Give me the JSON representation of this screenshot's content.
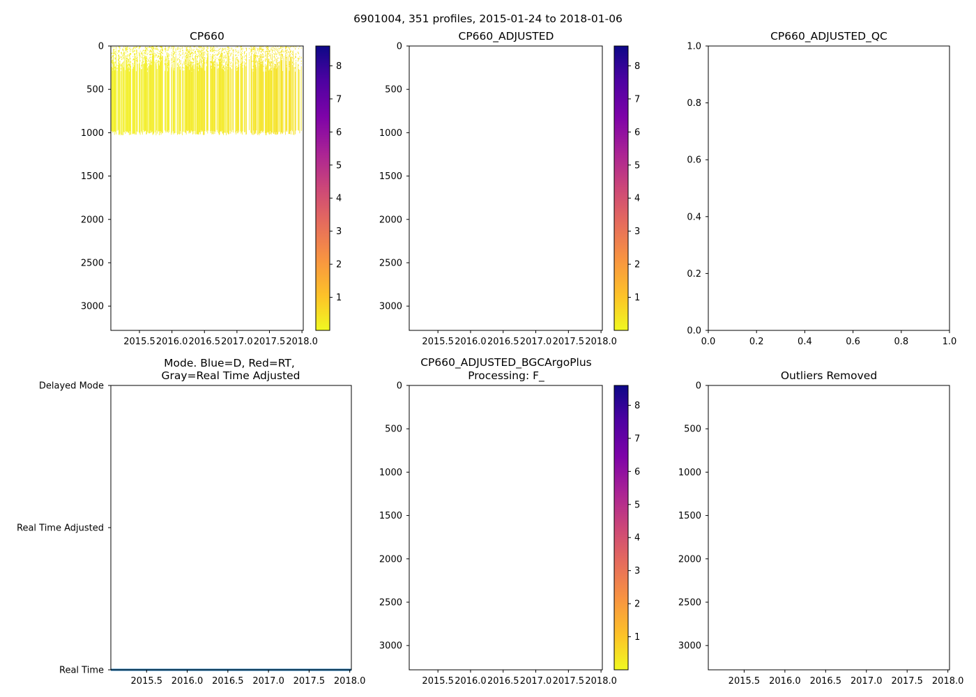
{
  "suptitle": "6901004, 351 profiles, 2015-01-24 to 2018-01-06",
  "chart_data": [
    {
      "id": "cp660",
      "type": "heatmap",
      "title": "CP660",
      "x_ticks": [
        "2015.5",
        "2016.0",
        "2016.5",
        "2017.0",
        "2017.5",
        "2018.0"
      ],
      "x_tick_values": [
        2015.5,
        2016.0,
        2016.5,
        2017.0,
        2017.5,
        2018.0
      ],
      "y_ticks": [
        "0",
        "500",
        "1000",
        "1500",
        "2000",
        "2500",
        "3000"
      ],
      "y_tick_values": [
        0,
        500,
        1000,
        1500,
        2000,
        2500,
        3000
      ],
      "xlim": [
        2015.06,
        2018.02
      ],
      "ylim": [
        3280,
        0
      ],
      "colormap": "plasma_r",
      "colorbar_ticks": [
        "1",
        "2",
        "3",
        "4",
        "5",
        "6",
        "7",
        "8"
      ],
      "colorbar_tick_values": [
        1,
        2,
        3,
        4,
        5,
        6,
        7,
        8
      ],
      "colorbar_range": [
        0.0,
        8.6
      ],
      "profile_max_depth": 1000,
      "profile_value_range": [
        0.05,
        0.45
      ],
      "profile_count": 351
    },
    {
      "id": "cp660-adjusted",
      "type": "heatmap",
      "title": "CP660_ADJUSTED",
      "x_ticks": [
        "2015.5",
        "2016.0",
        "2016.5",
        "2017.0",
        "2017.5",
        "2018.0"
      ],
      "x_tick_values": [
        2015.5,
        2016.0,
        2016.5,
        2017.0,
        2017.5,
        2018.0
      ],
      "y_ticks": [
        "0",
        "500",
        "1000",
        "1500",
        "2000",
        "2500",
        "3000"
      ],
      "y_tick_values": [
        0,
        500,
        1000,
        1500,
        2000,
        2500,
        3000
      ],
      "xlim": [
        2015.06,
        2018.02
      ],
      "ylim": [
        3280,
        0
      ],
      "colormap": "plasma_r",
      "colorbar_ticks": [
        "1",
        "2",
        "3",
        "4",
        "5",
        "6",
        "7",
        "8"
      ],
      "colorbar_tick_values": [
        1,
        2,
        3,
        4,
        5,
        6,
        7,
        8
      ],
      "colorbar_range": [
        0.0,
        8.6
      ]
    },
    {
      "id": "cp660-adjusted-qc",
      "type": "scatter",
      "title": "CP660_ADJUSTED_QC",
      "x_ticks": [
        "0.0",
        "0.2",
        "0.4",
        "0.6",
        "0.8",
        "1.0"
      ],
      "x_tick_values": [
        0.0,
        0.2,
        0.4,
        0.6,
        0.8,
        1.0
      ],
      "y_ticks": [
        "0.0",
        "0.2",
        "0.4",
        "0.6",
        "0.8",
        "1.0"
      ],
      "y_tick_values": [
        0.0,
        0.2,
        0.4,
        0.6,
        0.8,
        1.0
      ],
      "xlim": [
        0.0,
        1.0
      ],
      "ylim": [
        0.0,
        1.0
      ]
    },
    {
      "id": "mode",
      "type": "line",
      "title_lines": [
        "Mode. Blue=D, Red=RT,",
        "Gray=Real Time Adjusted"
      ],
      "x_ticks": [
        "2015.5",
        "2016.0",
        "2016.5",
        "2017.0",
        "2017.5",
        "2018.0"
      ],
      "x_tick_values": [
        2015.5,
        2016.0,
        2016.5,
        2017.0,
        2017.5,
        2018.0
      ],
      "y_ticks": [
        "Delayed Mode",
        "Real Time Adjusted",
        "Real Time"
      ],
      "y_tick_values": [
        2,
        1,
        0
      ],
      "xlim": [
        2015.06,
        2018.02
      ],
      "ylim": [
        0,
        2
      ],
      "series": [
        {
          "name": "Real Time",
          "color": "#1f77b4",
          "x": [
            2015.06,
            2018.02
          ],
          "y": [
            0,
            0
          ]
        }
      ]
    },
    {
      "id": "cp660-bgcargoplus",
      "type": "heatmap",
      "title_lines": [
        "CP660_ADJUSTED_BGCArgoPlus",
        "Processing: F_"
      ],
      "x_ticks": [
        "2015.5",
        "2016.0",
        "2016.5",
        "2017.0",
        "2017.5",
        "2018.0"
      ],
      "x_tick_values": [
        2015.5,
        2016.0,
        2016.5,
        2017.0,
        2017.5,
        2018.0
      ],
      "y_ticks": [
        "0",
        "500",
        "1000",
        "1500",
        "2000",
        "2500",
        "3000"
      ],
      "y_tick_values": [
        0,
        500,
        1000,
        1500,
        2000,
        2500,
        3000
      ],
      "xlim": [
        2015.06,
        2018.02
      ],
      "ylim": [
        3280,
        0
      ],
      "colormap": "plasma_r",
      "colorbar_ticks": [
        "1",
        "2",
        "3",
        "4",
        "5",
        "6",
        "7",
        "8"
      ],
      "colorbar_tick_values": [
        1,
        2,
        3,
        4,
        5,
        6,
        7,
        8
      ],
      "colorbar_range": [
        0.0,
        8.6
      ]
    },
    {
      "id": "outliers-removed",
      "type": "scatter",
      "title": "Outliers Removed",
      "x_ticks": [
        "2015.5",
        "2016.0",
        "2016.5",
        "2017.0",
        "2017.5",
        "2018.0"
      ],
      "x_tick_values": [
        2015.5,
        2016.0,
        2016.5,
        2017.0,
        2017.5,
        2018.0
      ],
      "y_ticks": [
        "0",
        "500",
        "1000",
        "1500",
        "2000",
        "2500",
        "3000"
      ],
      "y_tick_values": [
        0,
        500,
        1000,
        1500,
        2000,
        2500,
        3000
      ],
      "xlim": [
        2015.06,
        2018.02
      ],
      "ylim": [
        3280,
        0
      ]
    }
  ]
}
